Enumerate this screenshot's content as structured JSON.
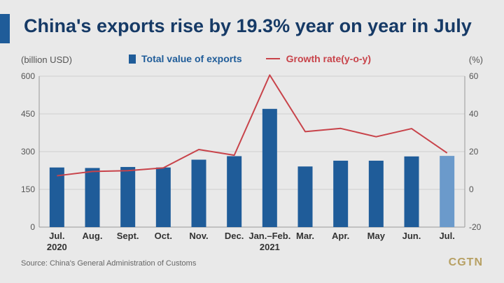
{
  "title": "China's exports rise by 19.3% year on year in July",
  "left_unit": "(billion USD)",
  "right_unit": "(%)",
  "source": "Source: China's General Administration of Customs",
  "brand": "CGTN",
  "colors": {
    "bar": "#1f5c99",
    "bar_highlight": "#6b9acb",
    "line": "#c8434a",
    "title": "#163a66",
    "brand": "#b7a063"
  },
  "chart_data": {
    "type": "bar",
    "categories": [
      "Jul.",
      "Aug.",
      "Sept.",
      "Oct.",
      "Nov.",
      "Dec.",
      "Jan.-Feb.",
      "Mar.",
      "Apr.",
      "May",
      "Jun.",
      "Jul."
    ],
    "category_sublabels": [
      "2020",
      "",
      "",
      "",
      "",
      "",
      "2021",
      "",
      "",
      "",
      "",
      ""
    ],
    "series": [
      {
        "name": "Total value of exports",
        "type": "bar",
        "axis": "left",
        "values": [
          237,
          235,
          239,
          237,
          268,
          282,
          470,
          241,
          264,
          264,
          281,
          283
        ],
        "highlight_index": 11
      },
      {
        "name": "Growth rate(y-o-y)",
        "type": "line",
        "axis": "right",
        "values": [
          7.2,
          9.5,
          9.9,
          11.4,
          21.1,
          18.1,
          60.6,
          30.6,
          32.3,
          27.9,
          32.2,
          19.3
        ]
      }
    ],
    "y_left": {
      "ticks": [
        0,
        150,
        300,
        450,
        600
      ],
      "ylim": [
        0,
        600
      ]
    },
    "y_right": {
      "ticks": [
        -20,
        0,
        20,
        40,
        60
      ],
      "ylim": [
        -20,
        60
      ]
    },
    "grid": true
  }
}
